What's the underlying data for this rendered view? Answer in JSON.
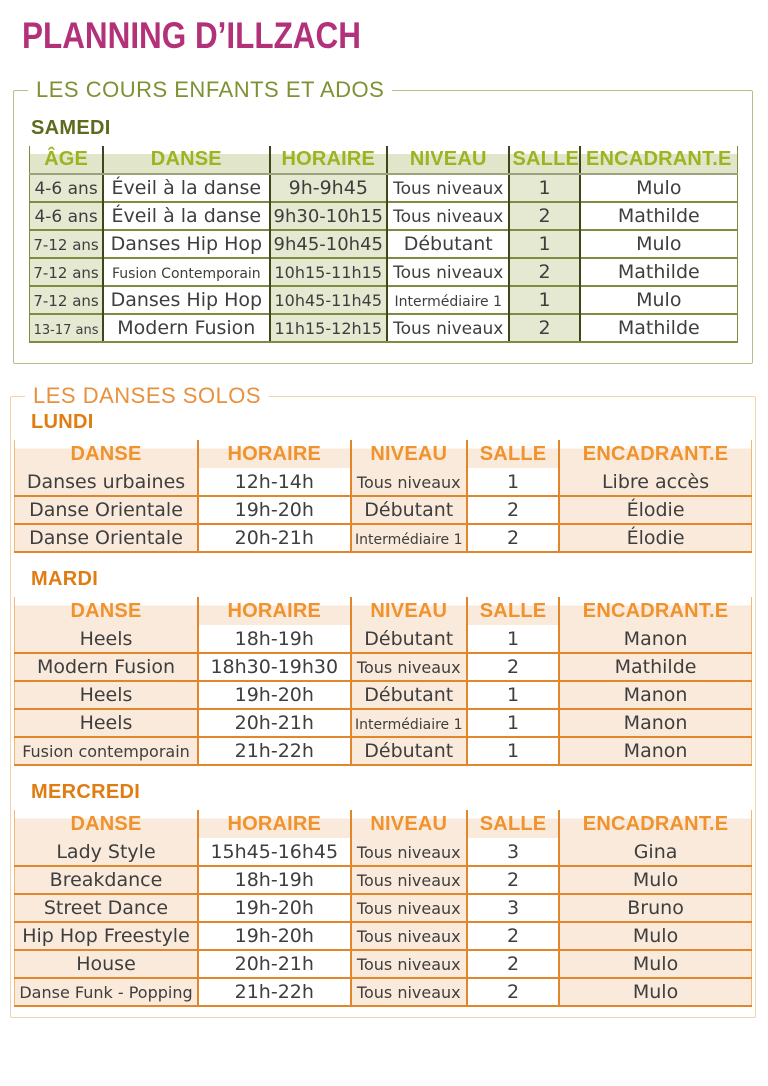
{
  "title": "PLANNING D’ILLZACH",
  "colors": {
    "title": "#b23179",
    "green_dark": "#5c6b1c",
    "green_legend": "#7e9133",
    "green_header": "#9db31f",
    "green_band": "#e1e6ca",
    "green_tint": "#e5e9d2",
    "green_line": "#7d8d3f",
    "green_vline": "#3f461c",
    "green_border_light": "#b5bf8b",
    "orange_day": "#df7c12",
    "orange_legend": "#e8913d",
    "orange_header": "#f0922d",
    "orange_line": "#e2862c",
    "orange_tint": "#faeadb",
    "orange_border_light": "#f3d1ad",
    "cell_text": "#3e3e3e"
  },
  "sections": [
    {
      "legend": "LES COURS ENFANTS ET ADOS",
      "theme": "green",
      "tables": [
        {
          "day": "SAMEDI",
          "columns": [
            "ÂGE",
            "DANSE",
            "HORAIRE",
            "NIVEAU",
            "SALLE",
            "ENCADRANT.E"
          ],
          "rows": [
            [
              "4-6 ans",
              "Éveil à la danse",
              "9h-9h45",
              "Tous niveaux",
              "1",
              "Mulo"
            ],
            [
              "4-6 ans",
              "Éveil à la danse",
              "9h30-10h15",
              "Tous niveaux",
              "2",
              "Mathilde"
            ],
            [
              "7-12 ans",
              "Danses Hip Hop",
              "9h45-10h45",
              "Débutant",
              "1",
              "Mulo"
            ],
            [
              "7-12 ans",
              "Fusion Contemporain",
              "10h15-11h15",
              "Tous niveaux",
              "2",
              "Mathilde"
            ],
            [
              "7-12 ans",
              "Danses Hip Hop",
              "10h45-11h45",
              "Intermédiaire 1",
              "1",
              "Mulo"
            ],
            [
              "13-17 ans",
              "Modern Fusion",
              "11h15-12h15",
              "Tous niveaux",
              "2",
              "Mathilde"
            ]
          ]
        }
      ]
    },
    {
      "legend": "LES DANSES SOLOS",
      "theme": "orange",
      "tables": [
        {
          "day": "LUNDI",
          "columns": [
            "DANSE",
            "HORAIRE",
            "NIVEAU",
            "SALLE",
            "ENCADRANT.E"
          ],
          "rows": [
            [
              "Danses urbaines",
              "12h-14h",
              "Tous niveaux",
              "1",
              "Libre accès"
            ],
            [
              "Danse Orientale",
              "19h-20h",
              "Débutant",
              "2",
              "Élodie"
            ],
            [
              "Danse Orientale",
              "20h-21h",
              "Intermédiaire 1",
              "2",
              "Élodie"
            ]
          ]
        },
        {
          "day": "MARDI",
          "columns": [
            "DANSE",
            "HORAIRE",
            "NIVEAU",
            "SALLE",
            "ENCADRANT.E"
          ],
          "rows": [
            [
              "Heels",
              "18h-19h",
              "Débutant",
              "1",
              "Manon"
            ],
            [
              "Modern Fusion",
              "18h30-19h30",
              "Tous niveaux",
              "2",
              "Mathilde"
            ],
            [
              "Heels",
              "19h-20h",
              "Débutant",
              "1",
              "Manon"
            ],
            [
              "Heels",
              "20h-21h",
              "Intermédiaire 1",
              "1",
              "Manon"
            ],
            [
              "Fusion contemporain",
              "21h-22h",
              "Débutant",
              "1",
              "Manon"
            ]
          ]
        },
        {
          "day": "MERCREDI",
          "columns": [
            "DANSE",
            "HORAIRE",
            "NIVEAU",
            "SALLE",
            "ENCADRANT.E"
          ],
          "rows": [
            [
              "Lady Style",
              "15h45-16h45",
              "Tous niveaux",
              "3",
              "Gina"
            ],
            [
              "Breakdance",
              "18h-19h",
              "Tous niveaux",
              "2",
              "Mulo"
            ],
            [
              "Street Dance",
              "19h-20h",
              "Tous niveaux",
              "3",
              "Bruno"
            ],
            [
              "Hip Hop Freestyle",
              "19h-20h",
              "Tous niveaux",
              "2",
              "Mulo"
            ],
            [
              "House",
              "20h-21h",
              "Tous niveaux",
              "2",
              "Mulo"
            ],
            [
              "Danse Funk - Popping",
              "21h-22h",
              "Tous niveaux",
              "2",
              "Mulo"
            ]
          ]
        }
      ]
    }
  ]
}
